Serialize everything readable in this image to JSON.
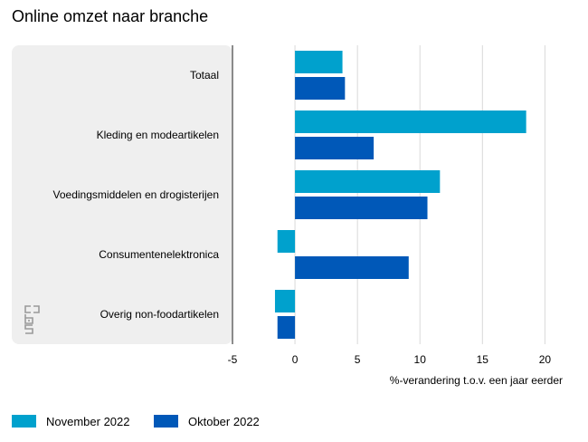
{
  "chart_data": {
    "type": "bar",
    "orientation": "horizontal",
    "title": "Online omzet naar branche",
    "xlabel": "%-verandering t.o.v. een jaar eerder",
    "ylabel": "",
    "xlim": [
      -5,
      22
    ],
    "xticks": [
      -5,
      0,
      5,
      10,
      15,
      20
    ],
    "grid": true,
    "legend_position": "bottom-left",
    "categories": [
      "Totaal",
      "Kleding en modeartikelen",
      "Voedingsmiddelen en drogisterijen",
      "Consumentenelektronica",
      "Overig non-foodartikelen"
    ],
    "series": [
      {
        "name": "November 2022",
        "color": "#00a1cd",
        "values": [
          3.8,
          18.5,
          11.6,
          -1.4,
          -1.6
        ]
      },
      {
        "name": "Oktober 2022",
        "color": "#0058b8",
        "values": [
          4.0,
          6.3,
          10.6,
          9.1,
          -1.4
        ]
      }
    ]
  },
  "colors": {
    "panel_background": "#efefef",
    "grid": "#d9d9d9",
    "axis": "#666666"
  },
  "logo": {
    "name": "cbs-logo-icon",
    "text": "cbs"
  }
}
